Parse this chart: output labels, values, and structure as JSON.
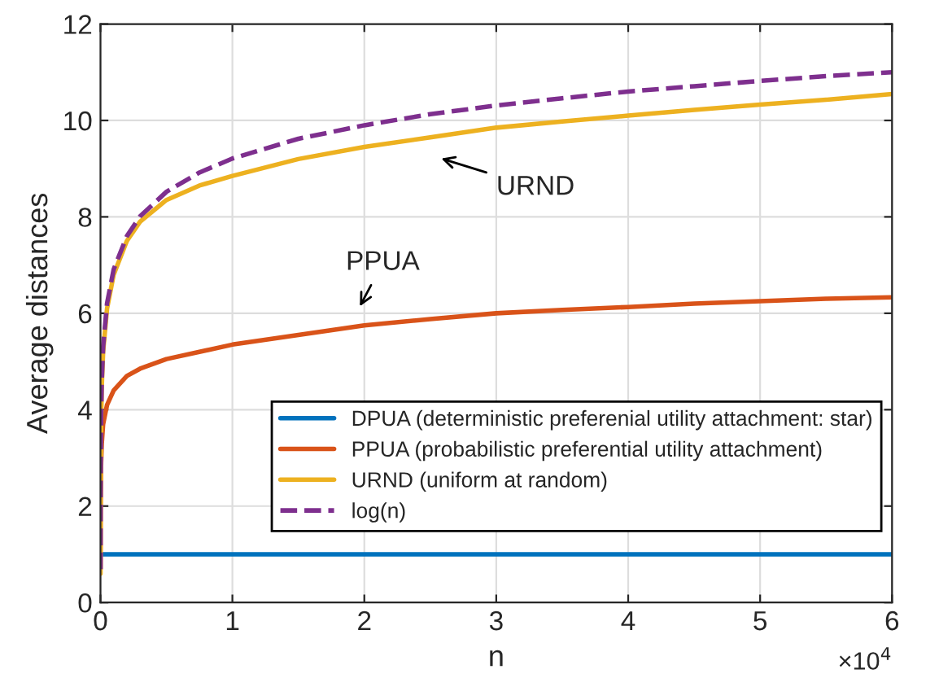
{
  "chart_data": {
    "type": "line",
    "xlabel": "n",
    "ylabel": "Average distances",
    "x": [
      0.0002,
      0.001,
      0.005,
      0.01,
      0.02,
      0.05,
      0.1,
      0.2,
      0.3,
      0.5,
      0.75,
      1,
      1.5,
      2,
      2.5,
      3,
      3.5,
      4,
      4.5,
      5,
      5.5,
      6
    ],
    "series": [
      {
        "name": "DPUA (deterministic preferenial utility attachment: star)",
        "color": "#0072bd",
        "values": [
          1,
          1,
          1,
          1,
          1,
          1,
          1,
          1,
          1,
          1,
          1,
          1,
          1,
          1,
          1,
          1,
          1,
          1,
          1,
          1,
          1,
          1
        ]
      },
      {
        "name": "PPUA (probabilistic preferential utility attachment)",
        "color": "#d95319",
        "values": [
          0.7,
          1.9,
          2.9,
          3.3,
          3.7,
          4.1,
          4.4,
          4.7,
          4.85,
          5.05,
          5.2,
          5.35,
          5.55,
          5.75,
          5.88,
          6.0,
          6.07,
          6.13,
          6.2,
          6.25,
          6.3,
          6.33
        ]
      },
      {
        "name": "URND (uniform at random)",
        "color": "#edb120",
        "values": [
          0.6,
          2.2,
          3.8,
          4.5,
          5.2,
          6.1,
          6.8,
          7.5,
          7.9,
          8.35,
          8.65,
          8.85,
          9.2,
          9.45,
          9.65,
          9.85,
          9.98,
          10.1,
          10.22,
          10.33,
          10.43,
          10.55
        ]
      },
      {
        "name": "log(n)",
        "color": "#7e2f8e",
        "line_style": "dashed",
        "values": [
          0.69,
          2.3,
          3.91,
          4.61,
          5.3,
          6.21,
          6.91,
          7.6,
          8.01,
          8.52,
          8.92,
          9.21,
          9.62,
          9.9,
          10.13,
          10.31,
          10.46,
          10.6,
          10.71,
          10.82,
          10.92,
          11.0
        ]
      }
    ],
    "xlim": [
      0,
      6
    ],
    "xticks": [
      0,
      1,
      2,
      3,
      4,
      5,
      6
    ],
    "ylim": [
      0,
      12
    ],
    "yticks": [
      0,
      2,
      4,
      6,
      8,
      10,
      12
    ],
    "grid": true,
    "legend": "bottom right",
    "annotations": [
      "URND",
      "PPUA",
      "×10$^{4}$"
    ]
  }
}
